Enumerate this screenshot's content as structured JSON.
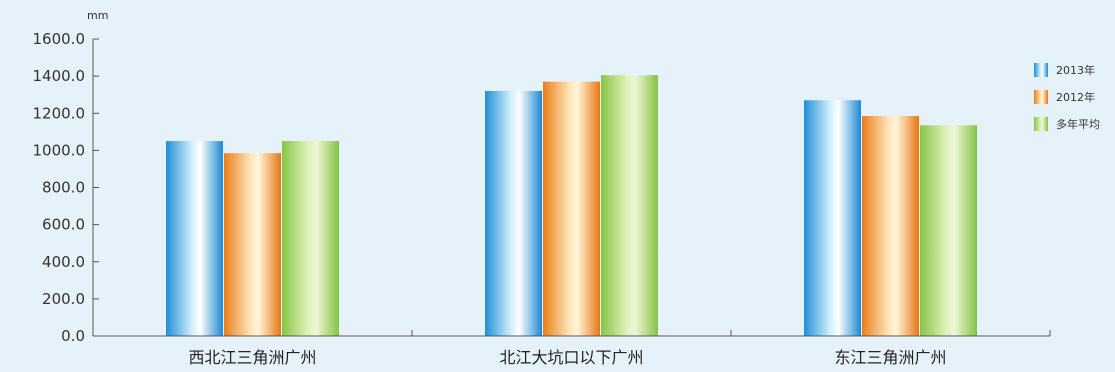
{
  "chart_data": {
    "type": "bar",
    "unit": "mm",
    "categories": [
      "西北江三角洲广州",
      "北江大坑口以下广州",
      "东江三角洲广州"
    ],
    "series": [
      {
        "name": "2013年",
        "values": [
          1050,
          1320,
          1270
        ],
        "color": "#2a9ee0"
      },
      {
        "name": "2012年",
        "values": [
          985,
          1370,
          1185
        ],
        "color": "#ef8a1e"
      },
      {
        "name": "多年平均",
        "values": [
          1050,
          1405,
          1135
        ],
        "color": "#8fc84a"
      }
    ],
    "ylim": [
      0,
      1600
    ],
    "yticks": [
      "0.0",
      "200.0",
      "400.0",
      "600.0",
      "800.0",
      "1000.0",
      "1200.0",
      "1400.0",
      "1600.0"
    ],
    "legend_position": "right",
    "grid": false
  }
}
